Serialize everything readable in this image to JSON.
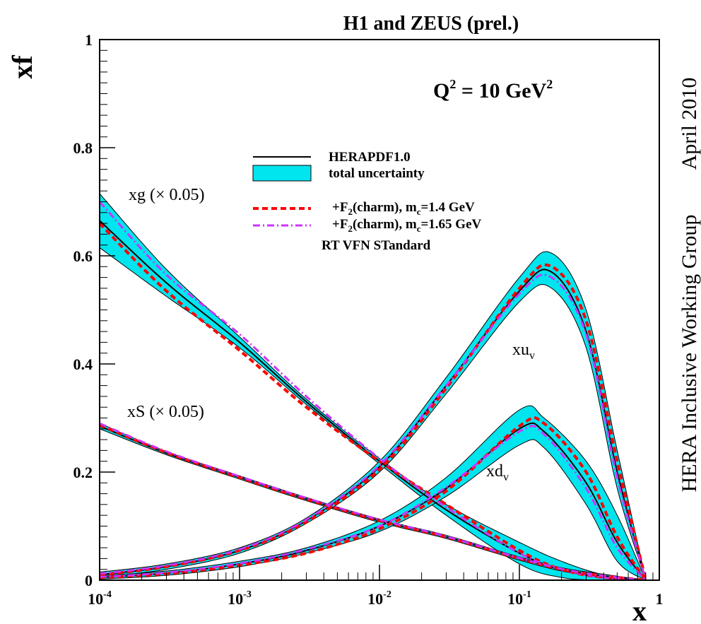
{
  "chart_data": {
    "type": "line",
    "title": "H1 and ZEUS (prel.)",
    "xlabel": "x",
    "ylabel": "xf",
    "x_scale": "log",
    "xlim": [
      0.0001,
      1
    ],
    "ylim": [
      0,
      1
    ],
    "x_ticks": [
      {
        "base": "10",
        "exp": "-4"
      },
      {
        "base": "10",
        "exp": "-3"
      },
      {
        "base": "10",
        "exp": "-2"
      },
      {
        "base": "10",
        "exp": "-1"
      },
      {
        "base": "1",
        "exp": ""
      }
    ],
    "y_ticks": [
      "0",
      "0.2",
      "0.4",
      "0.6",
      "0.8",
      "1"
    ],
    "annotation_q2": {
      "main": "Q",
      "sup": "2",
      "rest": " = 10 GeV",
      "sup2": "2"
    },
    "side_text": "HERA Inclusive Working Group",
    "side_date": "April 2010",
    "legend": {
      "position": "top-center",
      "entries": [
        {
          "label": "HERAPDF1.0",
          "style": "solid",
          "color": "#000000"
        },
        {
          "label": "total uncertainty",
          "style": "band",
          "color": "#00e5ee"
        },
        {
          "label_main": "+F",
          "label_sub": "2",
          "label_mid": "(charm), m",
          "label_sub2": "c",
          "label_end": "=1.4 GeV",
          "style": "dashed",
          "color": "#ff0000"
        },
        {
          "label_main": "+F",
          "label_sub": "2",
          "label_mid": "(charm), m",
          "label_sub2": "c",
          "label_end": "=1.65 GeV",
          "style": "dashdot",
          "color": "#cc33ff"
        },
        {
          "label": "RT VFN STandard",
          "style": "none",
          "color": "#000000"
        }
      ]
    },
    "curve_labels": {
      "xg": "xg (× 0.05)",
      "xS": "xS (× 0.05)",
      "xuv_main": "xu",
      "xuv_sub": "v",
      "xdv_main": "xd",
      "xdv_sub": "v"
    },
    "series": [
      {
        "name": "xg (× 0.05)",
        "x": [
          0.0001,
          0.0003,
          0.001,
          0.003,
          0.01,
          0.03,
          0.1,
          0.2,
          0.4,
          0.8
        ],
        "y": [
          0.665,
          0.55,
          0.44,
          0.33,
          0.22,
          0.13,
          0.05,
          0.02,
          0.005,
          0.0
        ],
        "y_lo": [
          0.615,
          0.525,
          0.43,
          0.325,
          0.215,
          0.12,
          0.03,
          0.005,
          0.0,
          0.0
        ],
        "y_hi": [
          0.715,
          0.575,
          0.45,
          0.335,
          0.225,
          0.14,
          0.07,
          0.035,
          0.01,
          0.0
        ],
        "y_c14": [
          0.66,
          0.535,
          0.425,
          0.32,
          0.22,
          0.14,
          0.055,
          0.02,
          0.005,
          0.0
        ],
        "y_c165": [
          0.7,
          0.565,
          0.455,
          0.34,
          0.225,
          0.135,
          0.05,
          0.02,
          0.005,
          0.0
        ]
      },
      {
        "name": "xS (× 0.05)",
        "x": [
          0.0001,
          0.0003,
          0.001,
          0.003,
          0.01,
          0.03,
          0.1,
          0.2,
          0.4,
          0.8
        ],
        "y": [
          0.285,
          0.235,
          0.19,
          0.15,
          0.11,
          0.08,
          0.04,
          0.02,
          0.008,
          0.0
        ],
        "y_lo": [
          0.28,
          0.232,
          0.187,
          0.147,
          0.107,
          0.077,
          0.037,
          0.017,
          0.005,
          0.0
        ],
        "y_hi": [
          0.29,
          0.238,
          0.193,
          0.153,
          0.113,
          0.083,
          0.043,
          0.023,
          0.011,
          0.0
        ],
        "y_c14": [
          0.287,
          0.236,
          0.19,
          0.15,
          0.11,
          0.08,
          0.04,
          0.02,
          0.008,
          0.0
        ],
        "y_c165": [
          0.29,
          0.238,
          0.192,
          0.152,
          0.112,
          0.081,
          0.041,
          0.021,
          0.008,
          0.0
        ]
      },
      {
        "name": "xu_v",
        "x": [
          0.0001,
          0.0003,
          0.001,
          0.003,
          0.01,
          0.03,
          0.1,
          0.17,
          0.3,
          0.5,
          0.8
        ],
        "y": [
          0.01,
          0.025,
          0.055,
          0.11,
          0.21,
          0.36,
          0.535,
          0.57,
          0.46,
          0.2,
          0.0
        ],
        "y_lo": [
          0.005,
          0.02,
          0.05,
          0.105,
          0.2,
          0.345,
          0.515,
          0.54,
          0.43,
          0.17,
          0.0
        ],
        "y_hi": [
          0.015,
          0.03,
          0.06,
          0.115,
          0.22,
          0.375,
          0.56,
          0.605,
          0.5,
          0.24,
          0.0
        ],
        "y_c14": [
          0.01,
          0.025,
          0.055,
          0.108,
          0.205,
          0.355,
          0.54,
          0.58,
          0.48,
          0.22,
          0.0
        ],
        "y_c165": [
          0.012,
          0.027,
          0.057,
          0.112,
          0.212,
          0.36,
          0.53,
          0.56,
          0.455,
          0.19,
          0.0
        ]
      },
      {
        "name": "xd_v",
        "x": [
          0.0001,
          0.0003,
          0.001,
          0.003,
          0.01,
          0.03,
          0.1,
          0.15,
          0.3,
          0.5,
          0.8
        ],
        "y": [
          0.005,
          0.013,
          0.03,
          0.055,
          0.1,
          0.17,
          0.28,
          0.275,
          0.18,
          0.07,
          0.0
        ],
        "y_lo": [
          0.002,
          0.009,
          0.025,
          0.05,
          0.09,
          0.155,
          0.25,
          0.245,
          0.14,
          0.035,
          0.0
        ],
        "y_hi": [
          0.008,
          0.017,
          0.035,
          0.06,
          0.11,
          0.19,
          0.315,
          0.3,
          0.22,
          0.12,
          0.0
        ],
        "y_c14": [
          0.005,
          0.012,
          0.028,
          0.05,
          0.095,
          0.165,
          0.285,
          0.29,
          0.2,
          0.08,
          0.0
        ],
        "y_c165": [
          0.006,
          0.014,
          0.031,
          0.057,
          0.1,
          0.172,
          0.275,
          0.27,
          0.17,
          0.06,
          0.0
        ]
      }
    ]
  }
}
